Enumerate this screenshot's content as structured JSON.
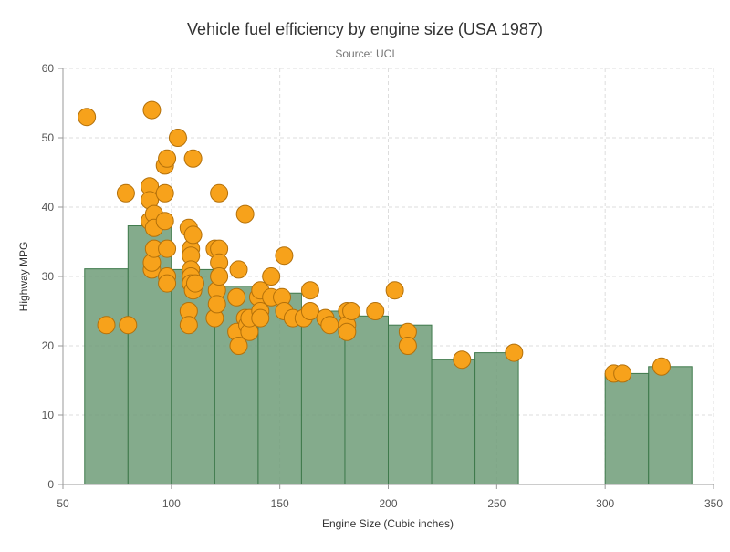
{
  "chart_data": {
    "type": "bar+scatter",
    "title": "Vehicle fuel efficiency by engine size (USA 1987)",
    "subtitle": "Source: UCI",
    "xlabel": "Engine Size (Cubic inches)",
    "ylabel": "Highway MPG",
    "xlim": [
      50,
      350
    ],
    "ylim": [
      0,
      60
    ],
    "xticks": [
      50,
      100,
      150,
      200,
      250,
      300,
      350
    ],
    "yticks": [
      0,
      10,
      20,
      30,
      40,
      50,
      60
    ],
    "grid": true,
    "legend": "none",
    "bars": {
      "color": "#6e9c78",
      "edge_color": "#3f7a4c",
      "bins": [
        {
          "x0": 60,
          "x1": 80,
          "value": 31.1
        },
        {
          "x0": 80,
          "x1": 100,
          "value": 37.3
        },
        {
          "x0": 100,
          "x1": 120,
          "value": 31.0
        },
        {
          "x0": 120,
          "x1": 140,
          "value": 28.6
        },
        {
          "x0": 140,
          "x1": 160,
          "value": 27.6
        },
        {
          "x0": 160,
          "x1": 180,
          "value": 25.0
        },
        {
          "x0": 180,
          "x1": 200,
          "value": 24.3
        },
        {
          "x0": 200,
          "x1": 220,
          "value": 23.0
        },
        {
          "x0": 220,
          "x1": 240,
          "value": 18.0
        },
        {
          "x0": 240,
          "x1": 260,
          "value": 19.0
        },
        {
          "x0": 300,
          "x1": 320,
          "value": 16.0
        },
        {
          "x0": 320,
          "x1": 340,
          "value": 17.0
        }
      ]
    },
    "scatter": {
      "color": "#f7a21b",
      "edge_color": "#b3700a",
      "points": [
        [
          61,
          53
        ],
        [
          70,
          23
        ],
        [
          79,
          42
        ],
        [
          80,
          23
        ],
        [
          90,
          43
        ],
        [
          90,
          41
        ],
        [
          90,
          38
        ],
        [
          91,
          54
        ],
        [
          91,
          31
        ],
        [
          91,
          32
        ],
        [
          92,
          34
        ],
        [
          92,
          39
        ],
        [
          92,
          37
        ],
        [
          97,
          46
        ],
        [
          97,
          42
        ],
        [
          97,
          38
        ],
        [
          98,
          47
        ],
        [
          98,
          34
        ],
        [
          98,
          30
        ],
        [
          98,
          29
        ],
        [
          103,
          50
        ],
        [
          108,
          37
        ],
        [
          108,
          25
        ],
        [
          108,
          23
        ],
        [
          109,
          34
        ],
        [
          109,
          33
        ],
        [
          109,
          31
        ],
        [
          109,
          30
        ],
        [
          109,
          29
        ],
        [
          110,
          47
        ],
        [
          110,
          36
        ],
        [
          110,
          28
        ],
        [
          111,
          29
        ],
        [
          120,
          34
        ],
        [
          120,
          24
        ],
        [
          121,
          28
        ],
        [
          121,
          26
        ],
        [
          122,
          42
        ],
        [
          122,
          34
        ],
        [
          122,
          32
        ],
        [
          122,
          30
        ],
        [
          130,
          27
        ],
        [
          130,
          22
        ],
        [
          131,
          20
        ],
        [
          131,
          31
        ],
        [
          134,
          39
        ],
        [
          134,
          24
        ],
        [
          135,
          23
        ],
        [
          136,
          22
        ],
        [
          136,
          24
        ],
        [
          140,
          27
        ],
        [
          141,
          28
        ],
        [
          141,
          25
        ],
        [
          141,
          24
        ],
        [
          146,
          30
        ],
        [
          146,
          27
        ],
        [
          151,
          27
        ],
        [
          152,
          33
        ],
        [
          152,
          25
        ],
        [
          156,
          24
        ],
        [
          161,
          24
        ],
        [
          164,
          28
        ],
        [
          164,
          25
        ],
        [
          171,
          24
        ],
        [
          173,
          23
        ],
        [
          181,
          25
        ],
        [
          181,
          23
        ],
        [
          181,
          22
        ],
        [
          183,
          25
        ],
        [
          194,
          25
        ],
        [
          203,
          28
        ],
        [
          209,
          22
        ],
        [
          209,
          20
        ],
        [
          234,
          18
        ],
        [
          258,
          19
        ],
        [
          304,
          16
        ],
        [
          308,
          16
        ],
        [
          326,
          17
        ]
      ]
    }
  }
}
